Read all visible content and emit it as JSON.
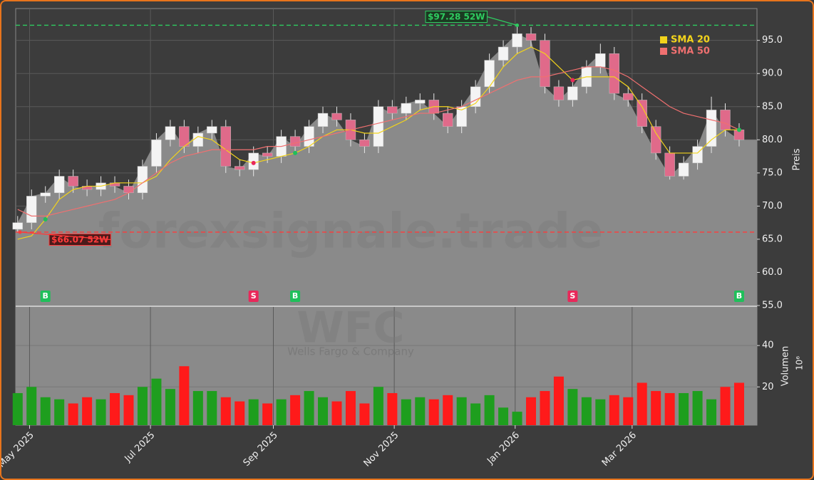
{
  "chart_data": {
    "type": "candlestick",
    "x": [
      "2025-04-25",
      "2025-05-02",
      "2025-05-09",
      "2025-05-16",
      "2025-05-23",
      "2025-05-30",
      "2025-06-06",
      "2025-06-13",
      "2025-06-20",
      "2025-06-27",
      "2025-07-04",
      "2025-07-11",
      "2025-07-18",
      "2025-07-25",
      "2025-08-01",
      "2025-08-08",
      "2025-08-15",
      "2025-08-22",
      "2025-08-29",
      "2025-09-05",
      "2025-09-12",
      "2025-09-19",
      "2025-09-26",
      "2025-10-03",
      "2025-10-10",
      "2025-10-17",
      "2025-10-24",
      "2025-10-31",
      "2025-11-07",
      "2025-11-14",
      "2025-11-21",
      "2025-11-28",
      "2025-12-05",
      "2025-12-12",
      "2025-12-19",
      "2025-12-26",
      "2026-01-02",
      "2026-01-09",
      "2026-01-16",
      "2026-01-23",
      "2026-01-30",
      "2026-02-06",
      "2026-02-13",
      "2026-02-20",
      "2026-02-27",
      "2026-03-06",
      "2026-03-13",
      "2026-03-20",
      "2026-03-27",
      "2026-04-03",
      "2026-04-10",
      "2026-04-17",
      "2026-04-24"
    ],
    "open": [
      66.5,
      67.5,
      71.5,
      72,
      74.5,
      73,
      72.5,
      73.5,
      73,
      72,
      76,
      80,
      82,
      79,
      81,
      82,
      76,
      75.5,
      78,
      77.5,
      80.5,
      79,
      82,
      84,
      83,
      80,
      79,
      85,
      84,
      85.5,
      86,
      84,
      82,
      85,
      88,
      92,
      94,
      96,
      95,
      88,
      86,
      88,
      91,
      93,
      87,
      86,
      82,
      78,
      74.5,
      76.5,
      79,
      84.5,
      81.5
    ],
    "high": [
      68.5,
      72.5,
      73,
      75.5,
      75.5,
      74,
      74.5,
      74.5,
      74,
      77,
      81,
      83,
      83,
      82,
      83,
      83,
      77,
      79,
      79,
      81.5,
      81.5,
      83,
      85,
      85,
      84,
      81,
      86,
      86,
      86.5,
      87,
      87,
      85,
      86,
      89,
      93,
      95,
      97.28,
      97,
      96,
      89,
      89,
      92,
      94.5,
      94,
      88,
      87,
      83,
      79,
      77.5,
      80,
      86.5,
      85.5,
      82.5
    ],
    "low": [
      66.07,
      66.5,
      70.5,
      71,
      72,
      71.5,
      71.5,
      72,
      71,
      71,
      75,
      79,
      78,
      78,
      80,
      75,
      74.5,
      74.5,
      76.5,
      76.5,
      78,
      78,
      81,
      82,
      79,
      78,
      78,
      83,
      83,
      84.5,
      83,
      81,
      81,
      84,
      87,
      91,
      93,
      94,
      87,
      85,
      85,
      87,
      90,
      86,
      85,
      81,
      77,
      74,
      74,
      75.5,
      78,
      80.5,
      79
    ],
    "close": [
      67.5,
      71.5,
      72,
      74.5,
      73,
      72.5,
      73.5,
      73,
      72,
      76,
      80,
      82,
      79,
      81,
      82,
      76,
      75.5,
      78,
      77.5,
      80.5,
      79,
      82,
      84,
      83,
      80,
      79,
      85,
      84,
      85.5,
      86,
      84,
      82,
      85,
      88,
      92,
      94,
      96,
      95,
      88,
      86,
      88,
      91,
      93,
      87,
      86,
      82,
      78,
      74.5,
      76.5,
      79,
      84.5,
      81.5,
      80
    ],
    "volume": [
      17,
      20,
      15,
      14,
      12,
      15,
      14,
      17,
      16,
      20,
      24,
      19,
      30,
      18,
      18,
      15,
      13,
      14,
      12,
      14,
      16,
      18,
      15,
      13,
      18,
      12,
      20,
      17,
      14,
      15,
      14,
      16,
      15,
      12,
      16,
      10,
      8,
      15,
      18,
      25,
      19,
      15,
      14,
      16,
      15,
      22,
      18,
      17,
      17,
      18,
      14,
      20,
      22
    ],
    "series": [
      {
        "name": "SMA 20",
        "color": "#f2d31b",
        "values": [
          65,
          65.5,
          68,
          71,
          72.5,
          73,
          73,
          73.5,
          73.5,
          73.5,
          74.5,
          77,
          79,
          80.5,
          80,
          78.5,
          77,
          76.5,
          77,
          77.5,
          78,
          79,
          80.5,
          81.5,
          81.5,
          81,
          81,
          82,
          83,
          84.5,
          85,
          85,
          84.5,
          85.5,
          88,
          91,
          93,
          94,
          93,
          91,
          89,
          89.5,
          89.5,
          89.5,
          88,
          85,
          81,
          78,
          78,
          78,
          80,
          81.5,
          81.5
        ]
      },
      {
        "name": "SMA 50",
        "color": "#f07070",
        "values": [
          69.5,
          68.5,
          68.5,
          69,
          69.5,
          70,
          70.5,
          71,
          72,
          73.5,
          75,
          76.5,
          77.5,
          78,
          78.5,
          78.5,
          78.5,
          78.5,
          79,
          79,
          79.5,
          80,
          80.5,
          81,
          81.5,
          82,
          82.5,
          83,
          83.5,
          84,
          84,
          84.5,
          85,
          86,
          87,
          88,
          89,
          89.5,
          89.5,
          90,
          90.5,
          91,
          91,
          90.5,
          89.5,
          88,
          86.5,
          85,
          84,
          83.5,
          83,
          82.5,
          81.5
        ]
      }
    ],
    "up_color": "#1e9e1e",
    "down_color": "#ff1a1a",
    "signals": [
      {
        "x": "2025-05-09",
        "label": "B"
      },
      {
        "x": "2025-08-22",
        "label": "S"
      },
      {
        "x": "2025-09-12",
        "label": "B"
      },
      {
        "x": "2026-01-30",
        "label": "S"
      },
      {
        "x": "2026-04-24",
        "label": "B"
      }
    ],
    "high_52w": {
      "value": 97.28,
      "label": "$97.28 52W"
    },
    "low_52w": {
      "value": 66.07,
      "label": "$66.07 52W"
    },
    "xlim": [
      "2025-04-24",
      "2026-05-03"
    ],
    "xticks": [
      {
        "value": "2025-05-01",
        "label": "May 2025"
      },
      {
        "value": "2025-07-01",
        "label": "Jul 2025"
      },
      {
        "value": "2025-09-01",
        "label": "Sep 2025"
      },
      {
        "value": "2025-11-01",
        "label": "Nov 2025"
      },
      {
        "value": "2026-01-01",
        "label": "Jan 2026"
      },
      {
        "value": "2026-03-01",
        "label": "Mar 2026"
      }
    ],
    "ylim": [
      55,
      99.8
    ],
    "yticks": [
      {
        "value": 55,
        "label": "55.0"
      },
      {
        "value": 60,
        "label": "60.0"
      },
      {
        "value": 65,
        "label": "65.0"
      },
      {
        "value": 70,
        "label": "70.0"
      },
      {
        "value": 75,
        "label": "75.0"
      },
      {
        "value": 80,
        "label": "80.0"
      },
      {
        "value": 85,
        "label": "85.0"
      },
      {
        "value": 90,
        "label": "90.0"
      },
      {
        "value": 95,
        "label": "95.0"
      }
    ],
    "ylabel": "Preis",
    "y2lim": [
      1.5,
      59
    ],
    "y2ticks": [
      20,
      40
    ],
    "y2label": "Volumen",
    "y2_exponent": "10⁶",
    "watermark": "forexsignale.trade",
    "ticker": "WFC",
    "company": "Wells Fargo & Company",
    "grid": true
  }
}
